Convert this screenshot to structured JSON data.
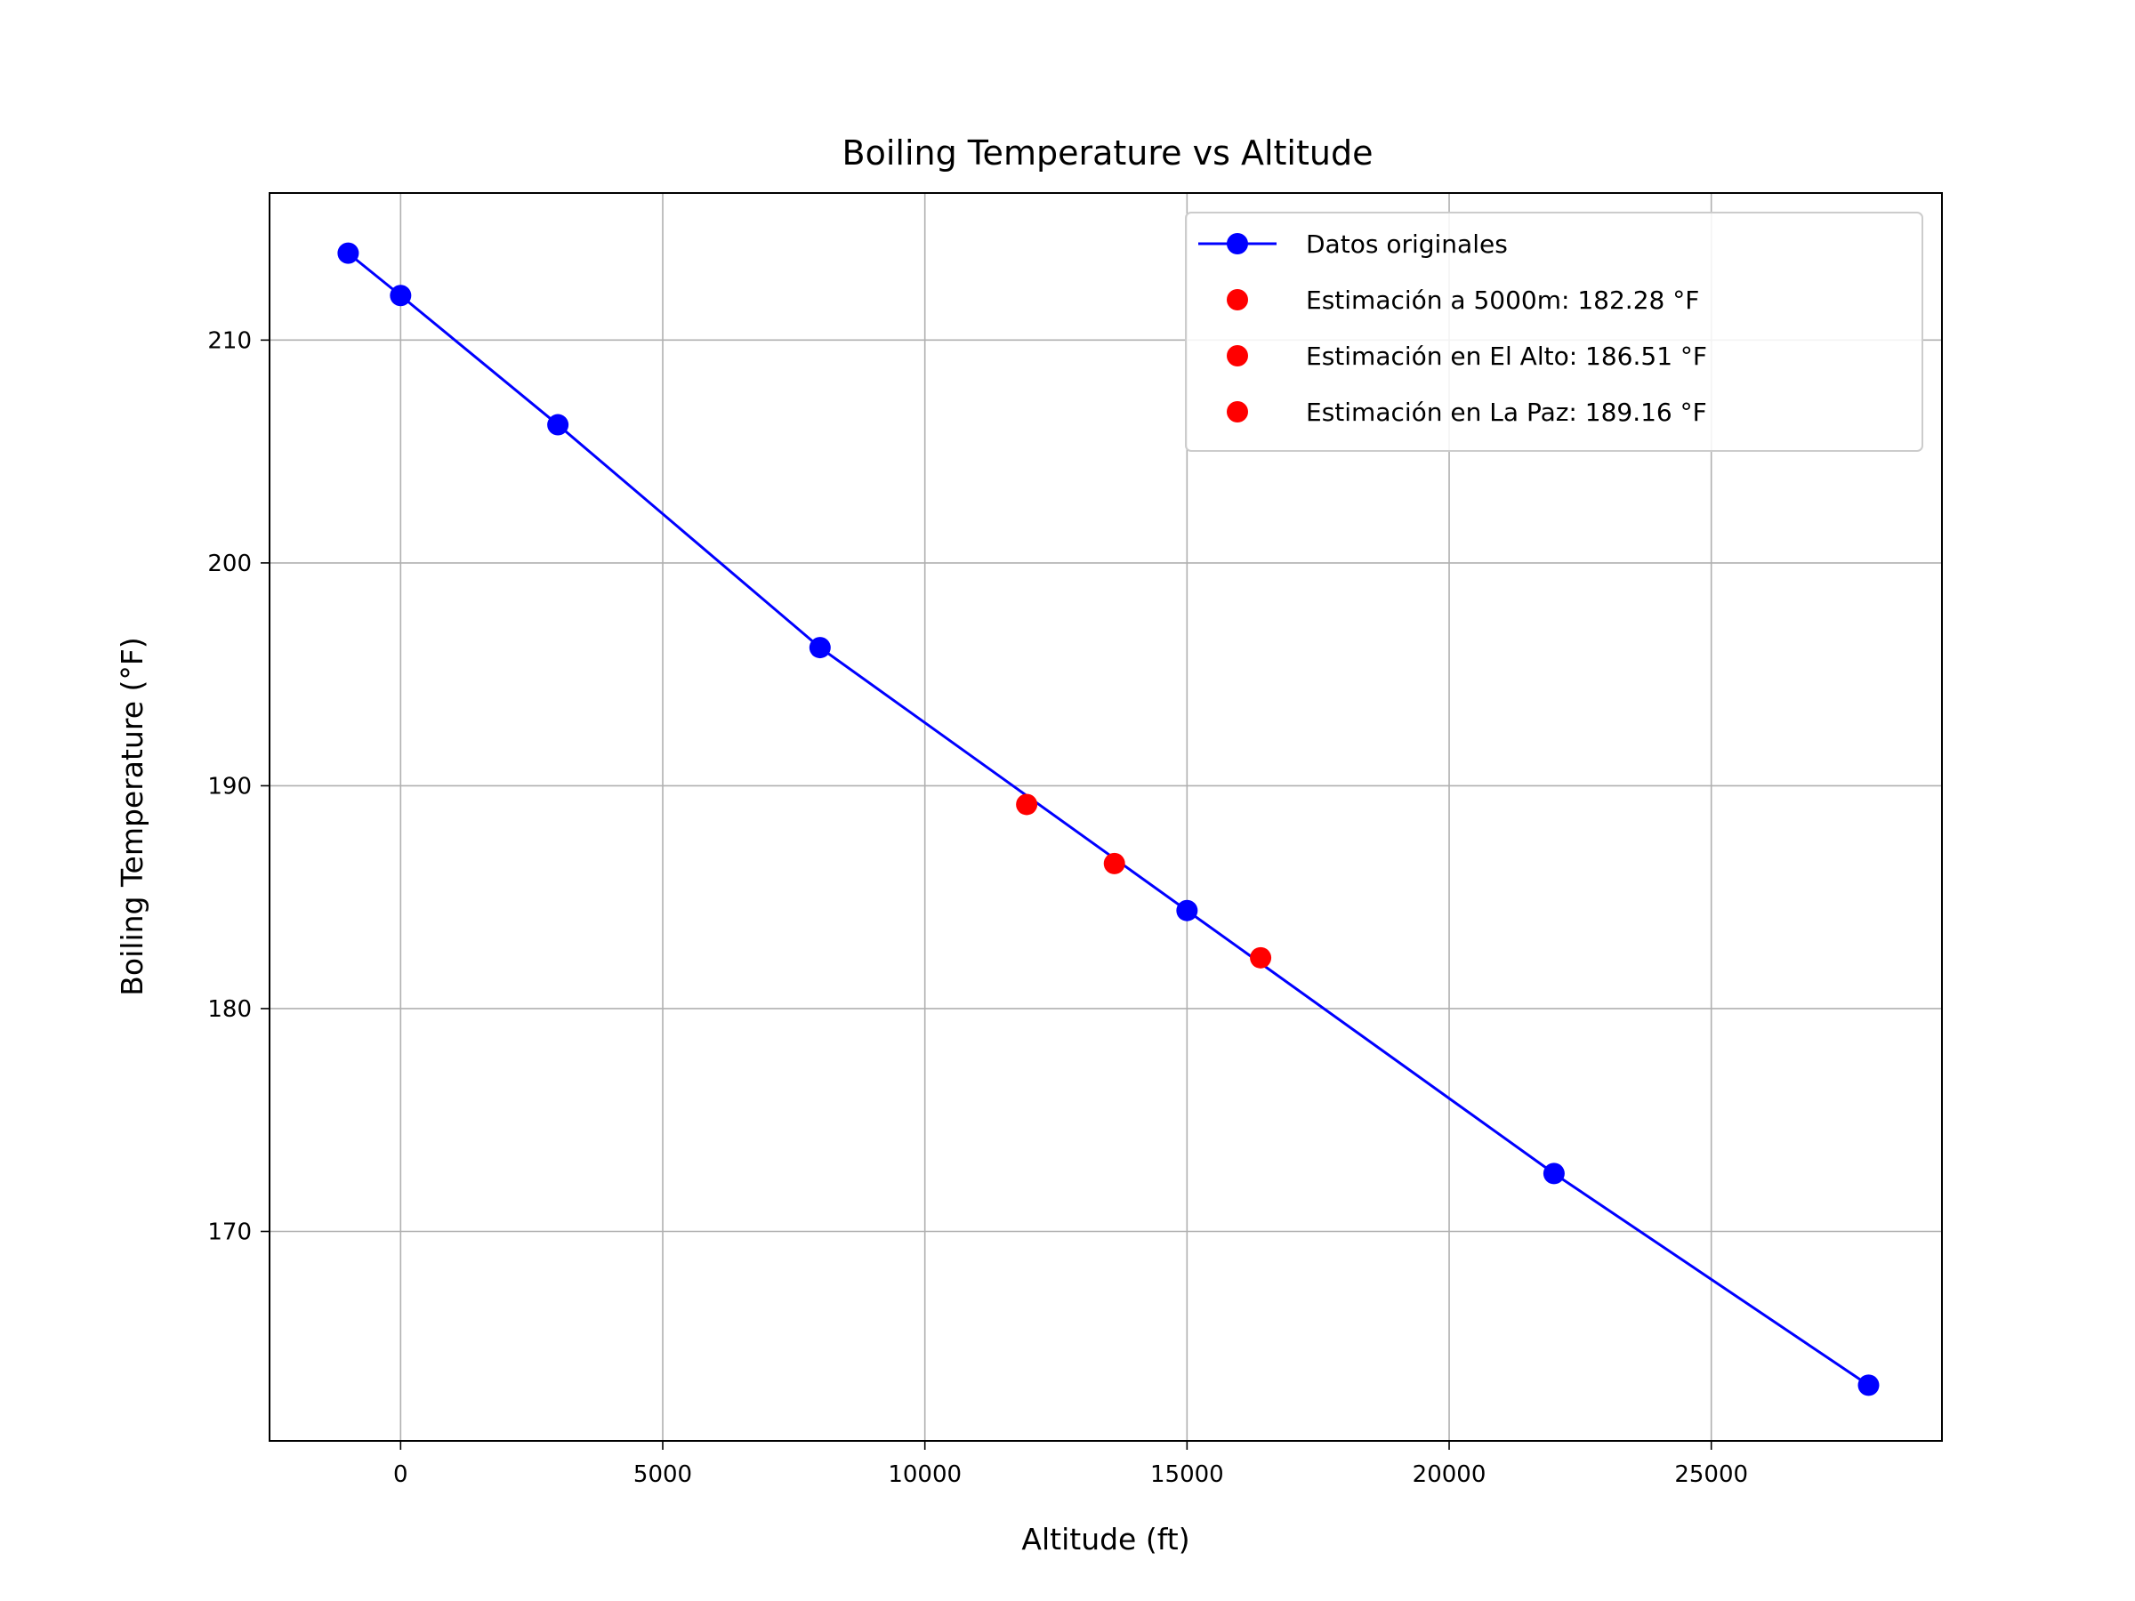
{
  "chart_data": {
    "type": "line",
    "title": "Boiling Temperature vs Altitude",
    "xlabel": "Altitude (ft)",
    "ylabel": "Boiling Temperature (°F)",
    "xlim": [
      -2500,
      29400
    ],
    "ylim": [
      160.6,
      216.6
    ],
    "xticks": [
      0,
      5000,
      10000,
      15000,
      20000,
      25000
    ],
    "yticks": [
      170,
      180,
      190,
      200,
      210
    ],
    "grid": true,
    "legend_position": "top-right",
    "colors": {
      "line": "#0000ff",
      "estimate": "#ff0000"
    },
    "series": [
      {
        "name": "Datos originales",
        "style": "line-marker",
        "color": "#0000ff",
        "x": [
          -1000,
          0,
          3000,
          8000,
          15000,
          22000,
          28000
        ],
        "y": [
          213.9,
          212.0,
          206.2,
          196.2,
          184.4,
          172.6,
          163.1
        ]
      },
      {
        "name": "Estimación a 5000m: 182.28 °F",
        "style": "marker",
        "color": "#ff0000",
        "x": [
          16404
        ],
        "y": [
          182.28
        ]
      },
      {
        "name": "Estimación en El Alto: 186.51 °F",
        "style": "marker",
        "color": "#ff0000",
        "x": [
          13615
        ],
        "y": [
          186.51
        ]
      },
      {
        "name": "Estimación en La Paz: 189.16 °F",
        "style": "marker",
        "color": "#ff0000",
        "x": [
          11942
        ],
        "y": [
          189.16
        ]
      }
    ]
  }
}
